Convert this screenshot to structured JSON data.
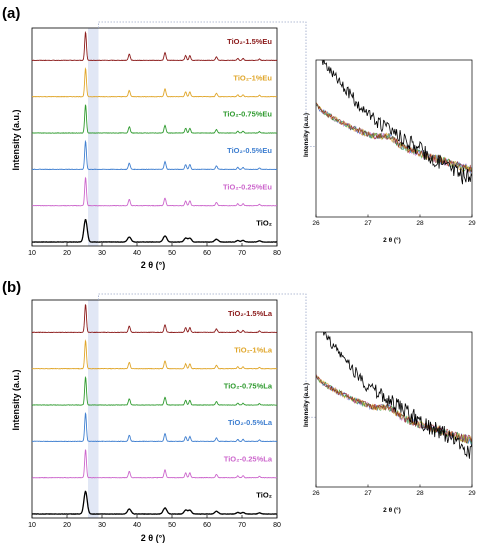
{
  "figure": {
    "panels": [
      {
        "label": "(a)",
        "ylabel": "Intensity (a.u.)",
        "xlabel": "2 θ (°)",
        "inset_ylabel": "Intensity (a.u.)",
        "inset_xlabel": "2 θ (°)"
      },
      {
        "label": "(b)",
        "ylabel": "Intensity (a.u.)",
        "xlabel": "2 θ (°)",
        "inset_ylabel": "Intensity (a.u.)",
        "inset_xlabel": "2 θ (°)"
      }
    ]
  },
  "chart_data": [
    {
      "type": "line",
      "panel": "(a)",
      "xlabel": "2 θ (°)",
      "ylabel": "Intensity (a.u.)",
      "xlim": [
        10,
        80
      ],
      "xticks": [
        10,
        20,
        30,
        40,
        50,
        60,
        70,
        80
      ],
      "highlight_band": [
        26,
        29
      ],
      "peaks_2theta": [
        25.3,
        37.8,
        48.0,
        53.9,
        55.1,
        62.7,
        68.8,
        70.3,
        75.0
      ],
      "series": [
        {
          "name": "TiO₂",
          "color": "#000000"
        },
        {
          "name": "TiO₂-0.25%Eu",
          "color": "#cc66cc"
        },
        {
          "name": "TiO₂-0.5%Eu",
          "color": "#3f7fd0"
        },
        {
          "name": "TiO₂-0.75%Eu",
          "color": "#2e9a2e"
        },
        {
          "name": "TiO₂-1%Eu",
          "color": "#e0a62a"
        },
        {
          "name": "TiO₂-1.5%Eu",
          "color": "#8b1a1a"
        }
      ],
      "inset": {
        "xlim": [
          26,
          29
        ],
        "xticks": [
          26,
          27,
          28,
          29
        ],
        "xlabel": "2 θ (°)",
        "ylabel": "Intensity (a.u.)"
      }
    },
    {
      "type": "line",
      "panel": "(b)",
      "xlabel": "2 θ (°)",
      "ylabel": "Intensity (a.u.)",
      "xlim": [
        10,
        80
      ],
      "xticks": [
        10,
        20,
        30,
        40,
        50,
        60,
        70,
        80
      ],
      "highlight_band": [
        26,
        29
      ],
      "peaks_2theta": [
        25.3,
        37.8,
        48.0,
        53.9,
        55.1,
        62.7,
        68.8,
        70.3,
        75.0
      ],
      "series": [
        {
          "name": "TiO₂",
          "color": "#000000"
        },
        {
          "name": "TiO₂-0.25%La",
          "color": "#cc66cc"
        },
        {
          "name": "TiO₂-0.5%La",
          "color": "#3f7fd0"
        },
        {
          "name": "TiO₂-0.75%La",
          "color": "#2e9a2e"
        },
        {
          "name": "TiO₂-1%La",
          "color": "#e0a62a"
        },
        {
          "name": "TiO₂-1.5%La",
          "color": "#8b1a1a"
        }
      ],
      "inset": {
        "xlim": [
          26,
          29
        ],
        "xticks": [
          26,
          27,
          28,
          29
        ],
        "xlabel": "2 θ (°)",
        "ylabel": "Intensity (a.u.)"
      }
    }
  ]
}
